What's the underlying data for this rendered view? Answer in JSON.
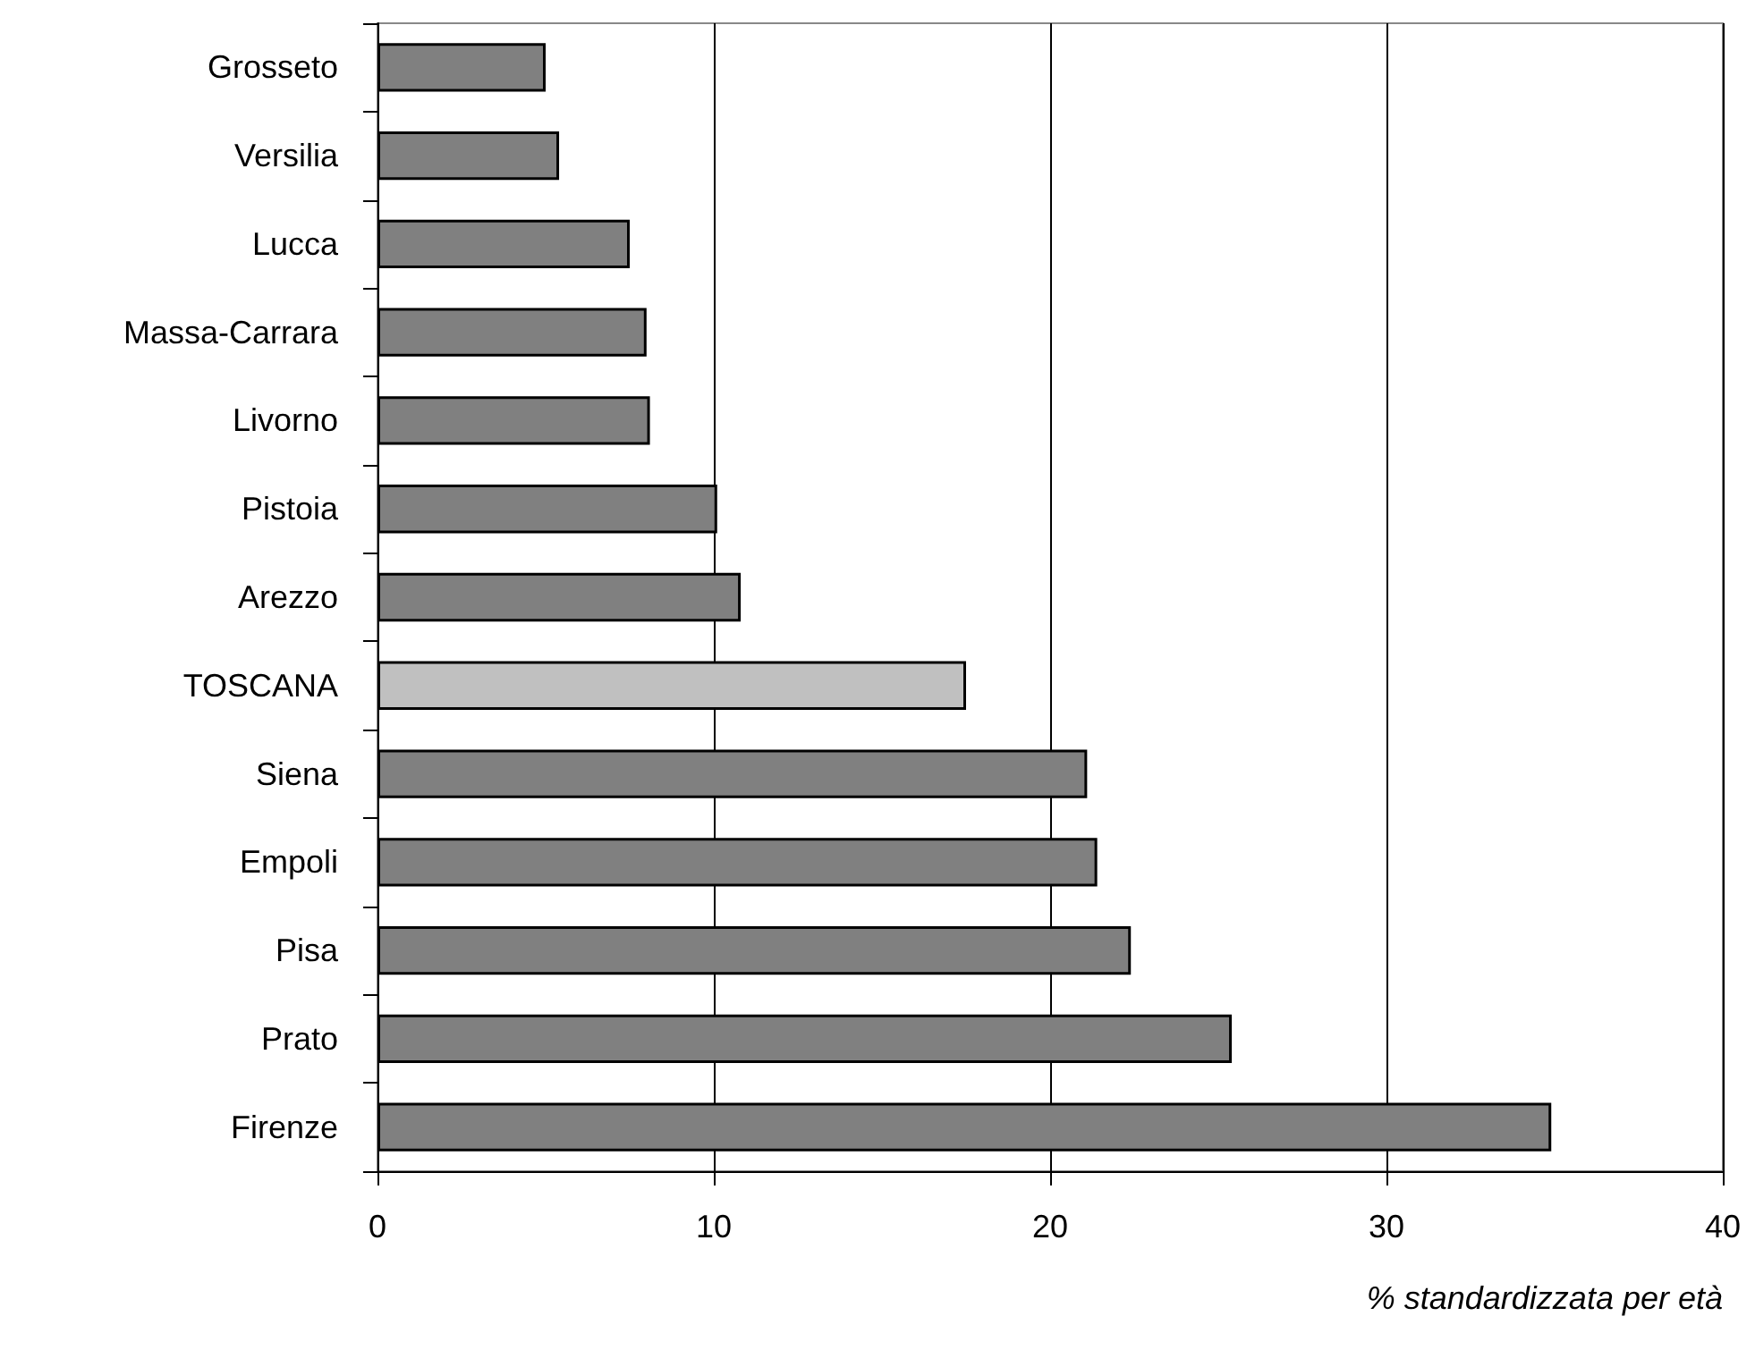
{
  "chart_data": {
    "type": "bar",
    "orientation": "horizontal",
    "xlabel": "% standardizzata per età",
    "categories": [
      "Grosseto",
      "Versilia",
      "Lucca",
      "Massa-Carrara",
      "Livorno",
      "Pistoia",
      "Arezzo",
      "TOSCANA",
      "Siena",
      "Empoli",
      "Pisa",
      "Prato",
      "Firenze"
    ],
    "values": [
      5.0,
      5.4,
      7.5,
      8.0,
      8.1,
      10.1,
      10.8,
      17.5,
      21.1,
      21.4,
      22.4,
      25.4,
      34.9
    ],
    "colors": [
      "#808080",
      "#808080",
      "#808080",
      "#808080",
      "#808080",
      "#808080",
      "#808080",
      "#c0c0c0",
      "#808080",
      "#808080",
      "#808080",
      "#808080",
      "#808080"
    ],
    "xlim": [
      0,
      40
    ],
    "xticks": [
      0,
      10,
      20,
      30,
      40
    ],
    "grid": "x"
  }
}
